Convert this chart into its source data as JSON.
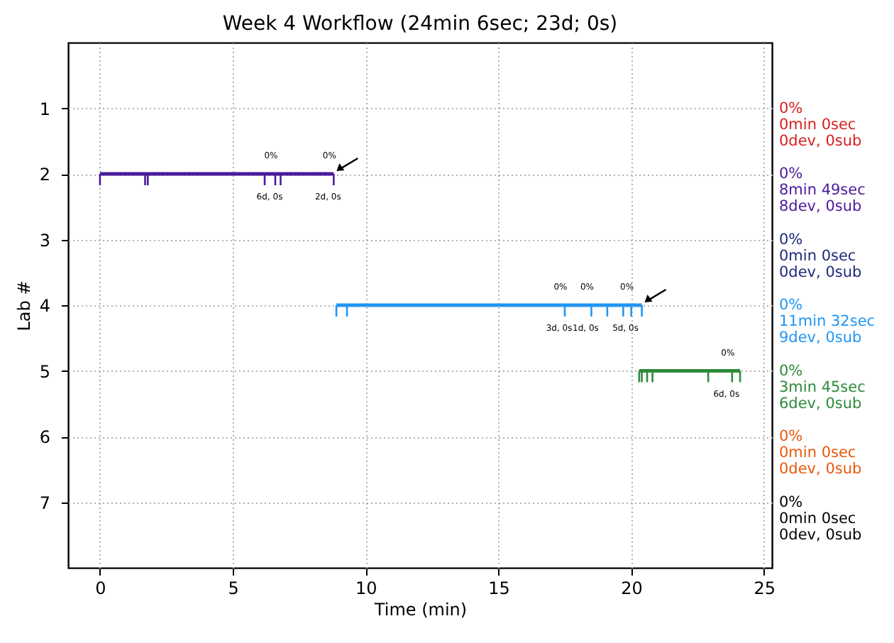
{
  "chart_data": {
    "type": "line",
    "title": "Week 4 Workflow (24min 6sec; 23d; 0s)",
    "xlabel": "Time (min)",
    "ylabel": "Lab #",
    "xlim": [
      -1.2,
      25.3
    ],
    "xticks": [
      0,
      5,
      10,
      15,
      20,
      25
    ],
    "ylim": [
      8,
      0
    ],
    "yticks": [
      1,
      2,
      3,
      4,
      5,
      6,
      7
    ],
    "grid": true,
    "line_style": "solid",
    "series": [
      {
        "name": "0%\n0min 0sec\n0dev, 0sub",
        "color": "#d62020"
      },
      {
        "name": "0%\n8min 49sec\n8dev, 0sub",
        "color": "#4a1a9c",
        "x": [
          0,
          1.7,
          1.8,
          6.2,
          6.6,
          6.8,
          8.8
        ],
        "values": [
          2,
          2,
          2,
          2,
          2,
          2,
          2
        ]
      },
      {
        "name": "0%\n0min 0sec\n0dev, 0sub",
        "color": "#1e2a7a"
      },
      {
        "name": "0%\n11min 32sec\n9dev, 0sub",
        "color": "#2196f3",
        "x": [
          8.9,
          9.3,
          17.5,
          18.5,
          19.1,
          19.7,
          20.0,
          20.4
        ],
        "values": [
          4,
          4,
          4,
          4,
          4,
          4,
          4,
          4
        ]
      },
      {
        "name": "0%\n3min 45sec\n6dev, 0sub",
        "color": "#2e8b3a",
        "x": [
          20.3,
          20.4,
          20.6,
          20.8,
          22.9,
          23.8,
          24.1
        ],
        "values": [
          5,
          5,
          5,
          5,
          5,
          5,
          5
        ]
      },
      {
        "name": "0%\n0min 0sec\n0dev, 0sub",
        "color": "#e8590c"
      },
      {
        "name": "0%\n0min 0sec\n0dev, 0sub",
        "color": "#000000"
      }
    ],
    "annotations": [
      {
        "text": "0%",
        "x": 6.6,
        "y": 2
      },
      {
        "text": "6d, 0s",
        "x": 6.6,
        "y": 2
      },
      {
        "text": "0%",
        "x": 8.8,
        "y": 2
      },
      {
        "text": "2d, 0s",
        "x": 8.8,
        "y": 2
      },
      {
        "text": "0%",
        "x": 17.5,
        "y": 4
      },
      {
        "text": "3d, 0s",
        "x": 17.5,
        "y": 4
      },
      {
        "text": "0%",
        "x": 18.5,
        "y": 4
      },
      {
        "text": "1d, 0s",
        "x": 18.5,
        "y": 4
      },
      {
        "text": "0%",
        "x": 20.0,
        "y": 4
      },
      {
        "text": "5d, 0s",
        "x": 20.0,
        "y": 4
      },
      {
        "text": "0%",
        "x": 23.8,
        "y": 5
      },
      {
        "text": "6d, 0s",
        "x": 23.8,
        "y": 5
      }
    ]
  }
}
